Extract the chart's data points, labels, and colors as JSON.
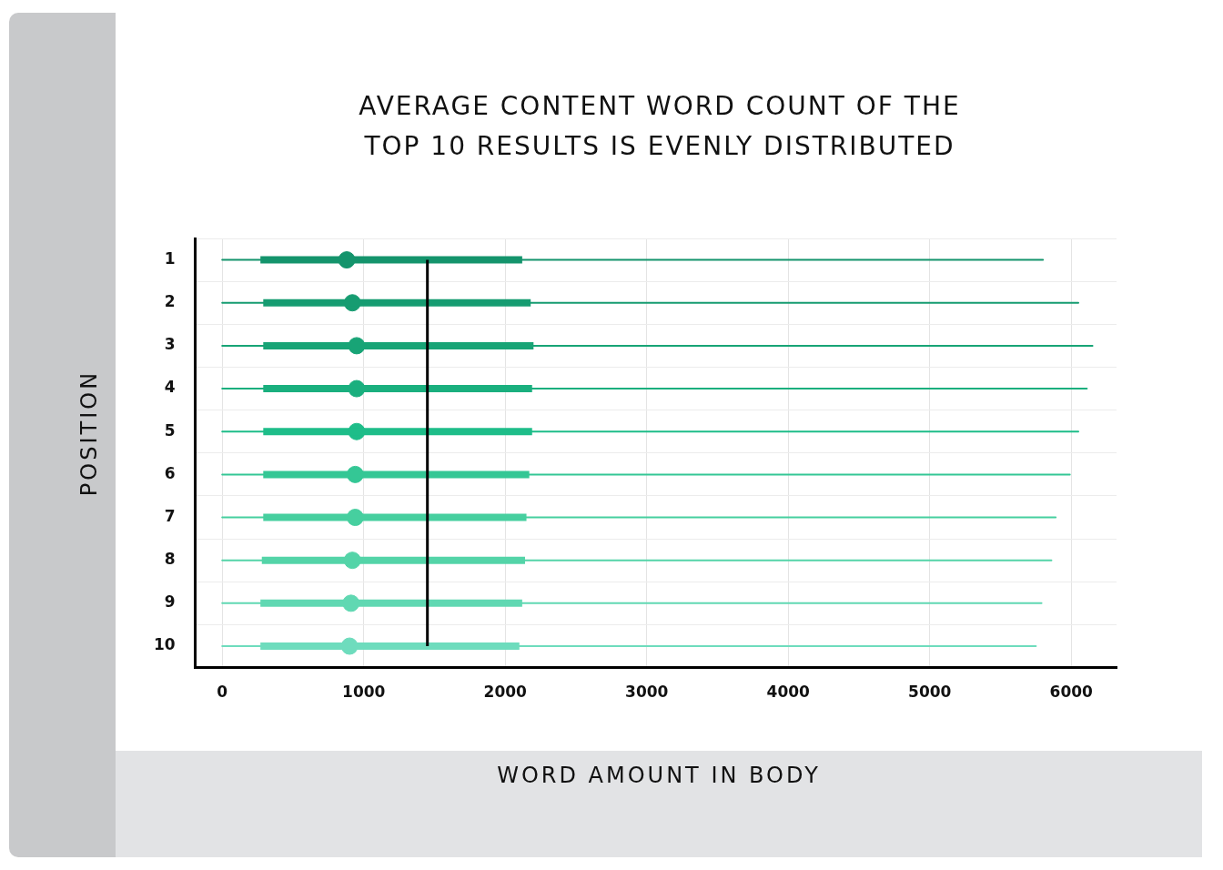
{
  "chart_data": {
    "type": "box",
    "orientation": "horizontal",
    "title": "AVERAGE CONTENT WORD COUNT OF THE TOP 10 RESULTS IS EVENLY DISTRIBUTED",
    "xlabel": "WORD AMOUNT IN BODY",
    "ylabel": "POSITION",
    "categories": [
      "1",
      "2",
      "3",
      "4",
      "5",
      "6",
      "7",
      "8",
      "9",
      "10"
    ],
    "boxes": [
      {
        "low": 0,
        "q1": 270,
        "median": 880,
        "q3": 2120,
        "high": 5800
      },
      {
        "low": 0,
        "q1": 290,
        "median": 920,
        "q3": 2180,
        "high": 6050
      },
      {
        "low": 0,
        "q1": 290,
        "median": 950,
        "q3": 2200,
        "high": 6150
      },
      {
        "low": 0,
        "q1": 290,
        "median": 950,
        "q3": 2190,
        "high": 6110
      },
      {
        "low": 0,
        "q1": 290,
        "median": 950,
        "q3": 2190,
        "high": 6050
      },
      {
        "low": 0,
        "q1": 290,
        "median": 940,
        "q3": 2170,
        "high": 5990
      },
      {
        "low": 0,
        "q1": 290,
        "median": 940,
        "q3": 2150,
        "high": 5890
      },
      {
        "low": 0,
        "q1": 280,
        "median": 920,
        "q3": 2140,
        "high": 5860
      },
      {
        "low": 0,
        "q1": 270,
        "median": 910,
        "q3": 2120,
        "high": 5790
      },
      {
        "low": 0,
        "q1": 270,
        "median": 900,
        "q3": 2100,
        "high": 5750
      }
    ],
    "colors": [
      "#14946c",
      "#169c71",
      "#18a476",
      "#1aaf7e",
      "#1ebd89",
      "#34c795",
      "#46cf9f",
      "#54d4a8",
      "#60d8b2",
      "#6edcbd"
    ],
    "xlim": [
      -190,
      6320
    ],
    "xticks": [
      0,
      1000,
      2000,
      3000,
      4000,
      5000,
      6000
    ],
    "ref_lines": [
      {
        "axis": "x",
        "value": 1450,
        "color": "#000000"
      }
    ],
    "grid": true
  }
}
